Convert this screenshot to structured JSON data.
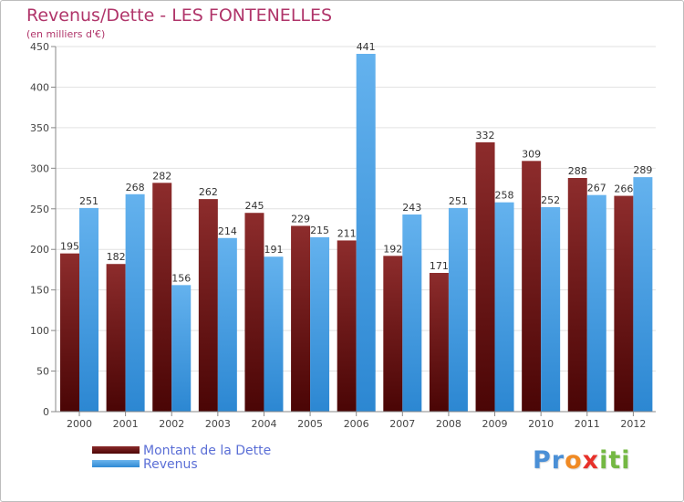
{
  "title": "Revenus/Dette - LES FONTENELLES",
  "subtitle": "(en milliers d'€)",
  "colors": {
    "title": "#b0356a",
    "debt": "#6e1616",
    "revenue": "#3c9be4",
    "legend_text": "#5b6fd6",
    "grid": "#e2e2e2"
  },
  "chart_data": {
    "type": "bar",
    "title": "Revenus/Dette - LES FONTENELLES",
    "ylabel": "(en milliers d'€)",
    "xlabel": "",
    "ylim": [
      0,
      450
    ],
    "yticks": [
      0,
      50,
      100,
      150,
      200,
      250,
      300,
      350,
      400,
      450
    ],
    "grid": true,
    "legend_position": "bottom-left",
    "categories": [
      "2000",
      "2001",
      "2002",
      "2003",
      "2004",
      "2005",
      "2006",
      "2007",
      "2008",
      "2009",
      "2010",
      "2011",
      "2012"
    ],
    "series": [
      {
        "name": "Montant de la Dette",
        "values": [
          195,
          182,
          282,
          262,
          245,
          229,
          211,
          192,
          171,
          332,
          309,
          288,
          266
        ]
      },
      {
        "name": "Revenus",
        "values": [
          251,
          268,
          156,
          214,
          191,
          215,
          441,
          243,
          251,
          258,
          252,
          267,
          289
        ]
      }
    ]
  },
  "legend": {
    "debt_label": "Montant de la Dette",
    "revenue_label": "Revenus"
  },
  "logo": {
    "parts": [
      "Pr",
      "o",
      "x",
      "iti"
    ]
  }
}
